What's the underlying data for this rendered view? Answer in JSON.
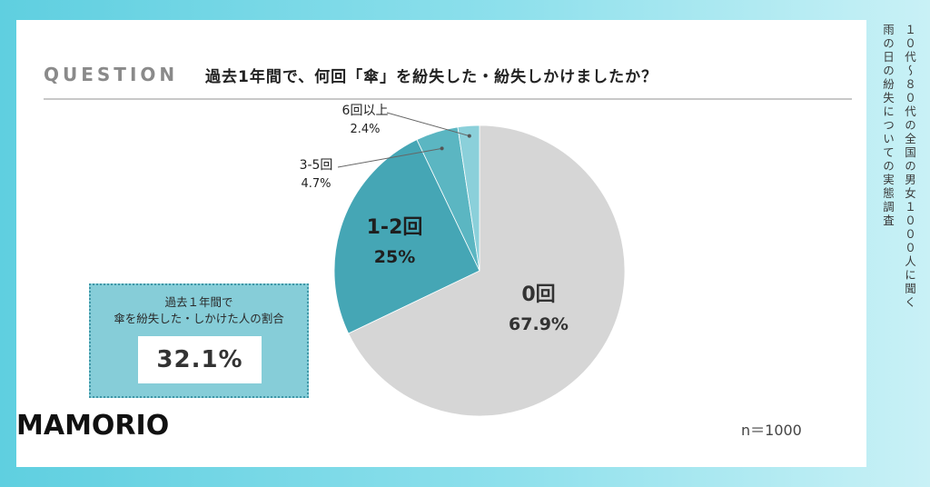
{
  "question": {
    "label": "QUESTION",
    "text": "過去1年間で、何回「傘」を紛失した・紛失しかけましたか？"
  },
  "summary": {
    "label_line1": "過去１年間で",
    "label_line2": "傘を紛失した・しかけた人の割合",
    "value": "32.1%"
  },
  "sample_size": "n＝1000",
  "logo": "MAMORIO",
  "side_caption": {
    "line1": "１０代〜８０代の全国の男女１０００人に聞く",
    "line2": "雨の日の紛失についての実態調査"
  },
  "colors": {
    "slice_0": "#d6d6d6",
    "slice_1_2": "#45a6b5",
    "slice_3_5": "#5bb6c2",
    "slice_6plus": "#8bd0da"
  },
  "chart_data": {
    "type": "pie",
    "title": "過去1年間で、何回「傘」を紛失した・紛失しかけましたか？",
    "start": "12 o'clock, clockwise",
    "slices": [
      {
        "label": "0回",
        "value": 67.9,
        "value_label": "67.9%",
        "color": "#d6d6d6"
      },
      {
        "label": "1-2回",
        "value": 25,
        "value_label": "25%",
        "color": "#45a6b5"
      },
      {
        "label": "3-5回",
        "value": 4.7,
        "value_label": "4.7%",
        "color": "#5bb6c2"
      },
      {
        "label": "6回以上",
        "value": 2.4,
        "value_label": "2.4%",
        "color": "#8bd0da"
      }
    ]
  }
}
